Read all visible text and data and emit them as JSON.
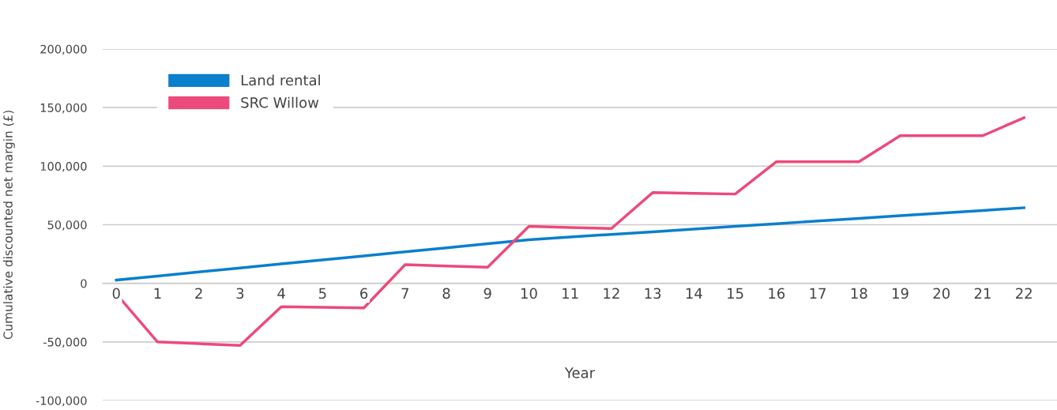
{
  "chart_data": {
    "type": "line",
    "xlabel": "Year",
    "ylabel": "Cumulative discounted net margin (£)",
    "x": [
      0,
      1,
      2,
      3,
      4,
      5,
      6,
      7,
      8,
      9,
      10,
      11,
      12,
      13,
      14,
      15,
      16,
      17,
      18,
      19,
      20,
      21,
      22
    ],
    "xlim": [
      -0.33,
      22.8
    ],
    "xticks": [
      0,
      1,
      2,
      3,
      4,
      5,
      6,
      7,
      8,
      9,
      10,
      11,
      12,
      13,
      14,
      15,
      16,
      17,
      18,
      19,
      20,
      21,
      22
    ],
    "ylim": [
      -100000,
      200000
    ],
    "yticks": [
      {
        "value": -100000,
        "label": "-100,000"
      },
      {
        "value": -50000,
        "label": "-50,000"
      },
      {
        "value": 0,
        "label": "0"
      },
      {
        "value": 50000,
        "label": "50,000"
      },
      {
        "value": 100000,
        "label": "100,000"
      },
      {
        "value": 150000,
        "label": "150,000"
      },
      {
        "value": 200000,
        "label": "200,000"
      }
    ],
    "grid": "y",
    "legend": "top left",
    "marker": "none",
    "line_style": "solid",
    "series": [
      {
        "name": "Land rental",
        "color": "#0a7fcc",
        "values": [
          2800,
          6200,
          9700,
          13100,
          16600,
          20000,
          23400,
          26900,
          30300,
          33800,
          37200,
          39500,
          41800,
          44000,
          46300,
          48600,
          50900,
          53200,
          55400,
          57700,
          60000,
          62200,
          64500
        ]
      },
      {
        "name": "SRC Willow",
        "color": "#ec4a7c",
        "values": [
          -9000,
          -50000,
          -51500,
          -53000,
          -20000,
          -20500,
          -21000,
          16000,
          14800,
          13700,
          48700,
          47700,
          46800,
          77400,
          76800,
          76200,
          103800,
          103800,
          103800,
          126000,
          126000,
          126000,
          141300
        ]
      }
    ]
  }
}
